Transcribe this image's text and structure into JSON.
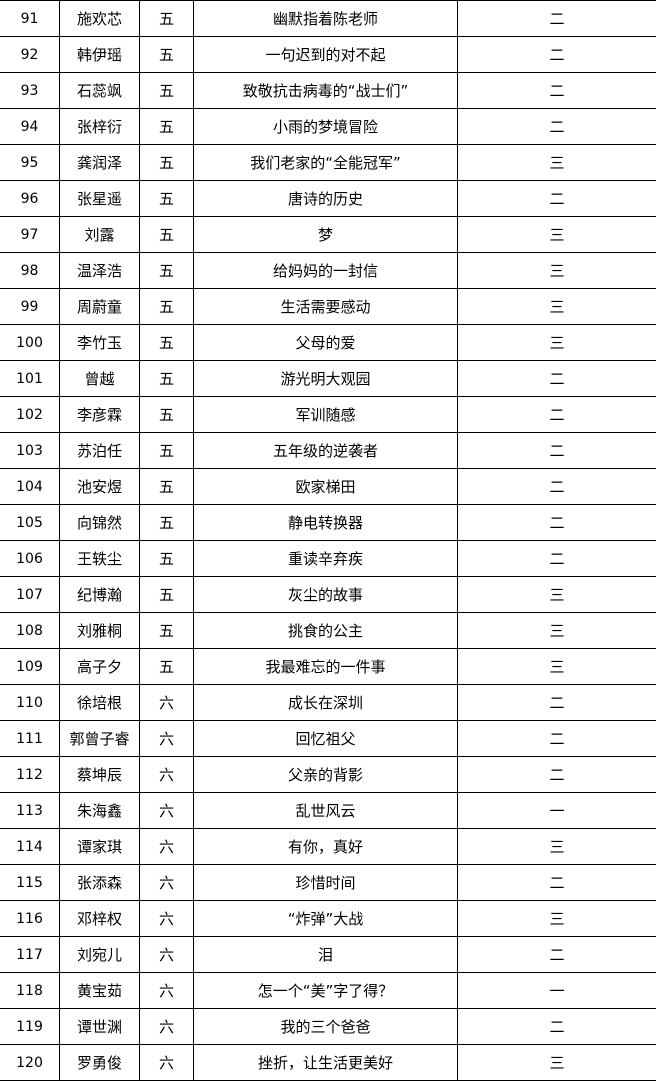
{
  "rows": [
    {
      "no": "91",
      "name": "施欢芯",
      "grade": "五",
      "title": "幽默指着陈老师",
      "prize": "二"
    },
    {
      "no": "92",
      "name": "韩伊瑶",
      "grade": "五",
      "title": "一句迟到的对不起",
      "prize": "二"
    },
    {
      "no": "93",
      "name": "石蕊飒",
      "grade": "五",
      "title": "致敬抗击病毒的“战士们”",
      "prize": "二"
    },
    {
      "no": "94",
      "name": "张梓衍",
      "grade": "五",
      "title": "小雨的梦境冒险",
      "prize": "二"
    },
    {
      "no": "95",
      "name": "龚润泽",
      "grade": "五",
      "title": "我们老家的“全能冠军”",
      "prize": "三"
    },
    {
      "no": "96",
      "name": "张星遥",
      "grade": "五",
      "title": "唐诗的历史",
      "prize": "二"
    },
    {
      "no": "97",
      "name": "刘露",
      "grade": "五",
      "title": "梦",
      "prize": "三"
    },
    {
      "no": "98",
      "name": "温泽浩",
      "grade": "五",
      "title": "给妈妈的一封信",
      "prize": "三"
    },
    {
      "no": "99",
      "name": "周蔚童",
      "grade": "五",
      "title": "生活需要感动",
      "prize": "三"
    },
    {
      "no": "100",
      "name": "李竹玉",
      "grade": "五",
      "title": "父母的爱",
      "prize": "三"
    },
    {
      "no": "101",
      "name": "曾越",
      "grade": "五",
      "title": "游光明大观园",
      "prize": "二"
    },
    {
      "no": "102",
      "name": "李彦霖",
      "grade": "五",
      "title": "军训随感",
      "prize": "二"
    },
    {
      "no": "103",
      "name": "苏泊任",
      "grade": "五",
      "title": "五年级的逆袭者",
      "prize": "二"
    },
    {
      "no": "104",
      "name": "池安煜",
      "grade": "五",
      "title": "欧家梯田",
      "prize": "二"
    },
    {
      "no": "105",
      "name": "向锦然",
      "grade": "五",
      "title": "静电转换器",
      "prize": "二"
    },
    {
      "no": "106",
      "name": "王轶尘",
      "grade": "五",
      "title": "重读辛弃疾",
      "prize": "二"
    },
    {
      "no": "107",
      "name": "纪博瀚",
      "grade": "五",
      "title": "灰尘的故事",
      "prize": "三"
    },
    {
      "no": "108",
      "name": "刘雅桐",
      "grade": "五",
      "title": "挑食的公主",
      "prize": "三"
    },
    {
      "no": "109",
      "name": "高子夕",
      "grade": "五",
      "title": "我最难忘的一件事",
      "prize": "三"
    },
    {
      "no": "110",
      "name": "徐培根",
      "grade": "六",
      "title": "成长在深圳",
      "prize": "二"
    },
    {
      "no": "111",
      "name": "郭曾子睿",
      "grade": "六",
      "title": "回忆祖父",
      "prize": "二"
    },
    {
      "no": "112",
      "name": "蔡坤辰",
      "grade": "六",
      "title": "父亲的背影",
      "prize": "二"
    },
    {
      "no": "113",
      "name": "朱海鑫",
      "grade": "六",
      "title": "乱世风云",
      "prize": "一"
    },
    {
      "no": "114",
      "name": "谭家琪",
      "grade": "六",
      "title": "有你，真好",
      "prize": "三"
    },
    {
      "no": "115",
      "name": "张添森",
      "grade": "六",
      "title": "珍惜时间",
      "prize": "二"
    },
    {
      "no": "116",
      "name": "邓梓权",
      "grade": "六",
      "title": "“炸弹”大战",
      "prize": "三"
    },
    {
      "no": "117",
      "name": "刘宛儿",
      "grade": "六",
      "title": "泪",
      "prize": "二"
    },
    {
      "no": "118",
      "name": "黄宝茹",
      "grade": "六",
      "title": "怎一个“美”字了得？",
      "prize": "一"
    },
    {
      "no": "119",
      "name": "谭世渊",
      "grade": "六",
      "title": "我的三个爸爸",
      "prize": "二"
    },
    {
      "no": "120",
      "name": "罗勇俊",
      "grade": "六",
      "title": "挫折，让生活更美好",
      "prize": "三"
    }
  ]
}
